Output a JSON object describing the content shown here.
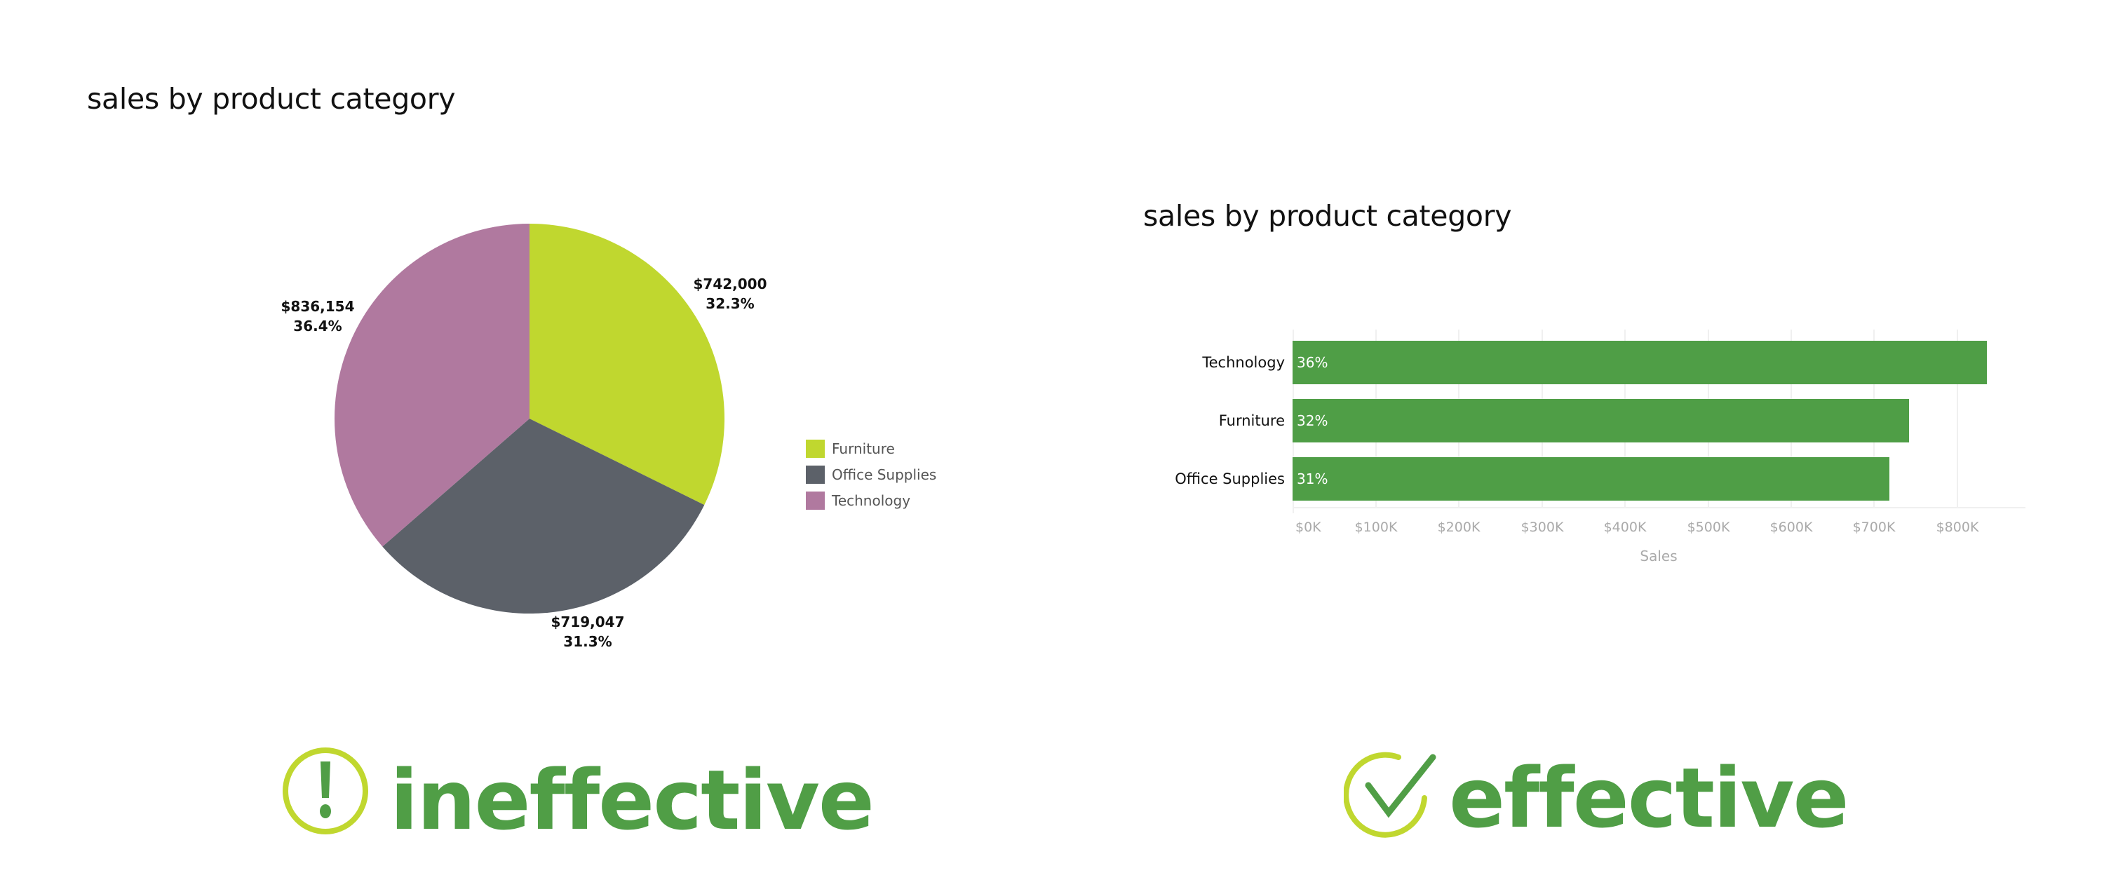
{
  "left_panel": {
    "title": "sales by product category",
    "legend": [
      {
        "label": "Furniture",
        "color": "#c0d72f"
      },
      {
        "label": "Office Supplies",
        "color": "#5c6169"
      },
      {
        "label": "Technology",
        "color": "#b0799f"
      }
    ],
    "slice_labels": {
      "furniture": {
        "value": "$742,000",
        "pct": "32.3%"
      },
      "office_supplies": {
        "value": "$719,047",
        "pct": "31.3%"
      },
      "technology": {
        "value": "$836,154",
        "pct": "36.4%"
      }
    },
    "verdict": {
      "label": "ineffective",
      "icon": "exclamation-circle-icon",
      "text_color": "#509e46",
      "ring_color": "#c0d72f"
    }
  },
  "right_panel": {
    "title": "sales by product category",
    "bars": [
      {
        "label": "Technology",
        "value_label": "36%"
      },
      {
        "label": "Furniture",
        "value_label": "32%"
      },
      {
        "label": "Office Supplies",
        "value_label": "31%"
      }
    ],
    "x_ticks": [
      "$0K",
      "$100K",
      "$200K",
      "$300K",
      "$400K",
      "$500K",
      "$600K",
      "$700K",
      "$800K"
    ],
    "x_axis_title": "Sales",
    "bar_color": "#4f9e46",
    "verdict": {
      "label": "effective",
      "icon": "check-circle-icon",
      "text_color": "#509e46",
      "ring_color": "#c0d72f"
    }
  },
  "chart_data": [
    {
      "type": "pie",
      "title": "sales by product category",
      "categories": [
        "Furniture",
        "Office Supplies",
        "Technology"
      ],
      "values": [
        742000,
        719047,
        836154
      ],
      "percentages": [
        32.3,
        31.3,
        36.4
      ],
      "colors": [
        "#c0d72f",
        "#5c6169",
        "#b0799f"
      ],
      "data_labels": [
        "$742,000 32.3%",
        "$719,047 31.3%",
        "$836,154 36.4%"
      ],
      "legend_position": "right",
      "annotation": "ineffective"
    },
    {
      "type": "bar",
      "orientation": "horizontal",
      "title": "sales by product category",
      "categories": [
        "Technology",
        "Furniture",
        "Office Supplies"
      ],
      "values": [
        836154,
        742000,
        719047
      ],
      "data_labels": [
        "36%",
        "32%",
        "31%"
      ],
      "xlabel": "Sales",
      "ylabel": "",
      "xlim": [
        0,
        870000
      ],
      "x_ticks": [
        "$0K",
        "$100K",
        "$200K",
        "$300K",
        "$400K",
        "$500K",
        "$600K",
        "$700K",
        "$800K"
      ],
      "grid": true,
      "color": "#4f9e46",
      "annotation": "effective"
    }
  ]
}
